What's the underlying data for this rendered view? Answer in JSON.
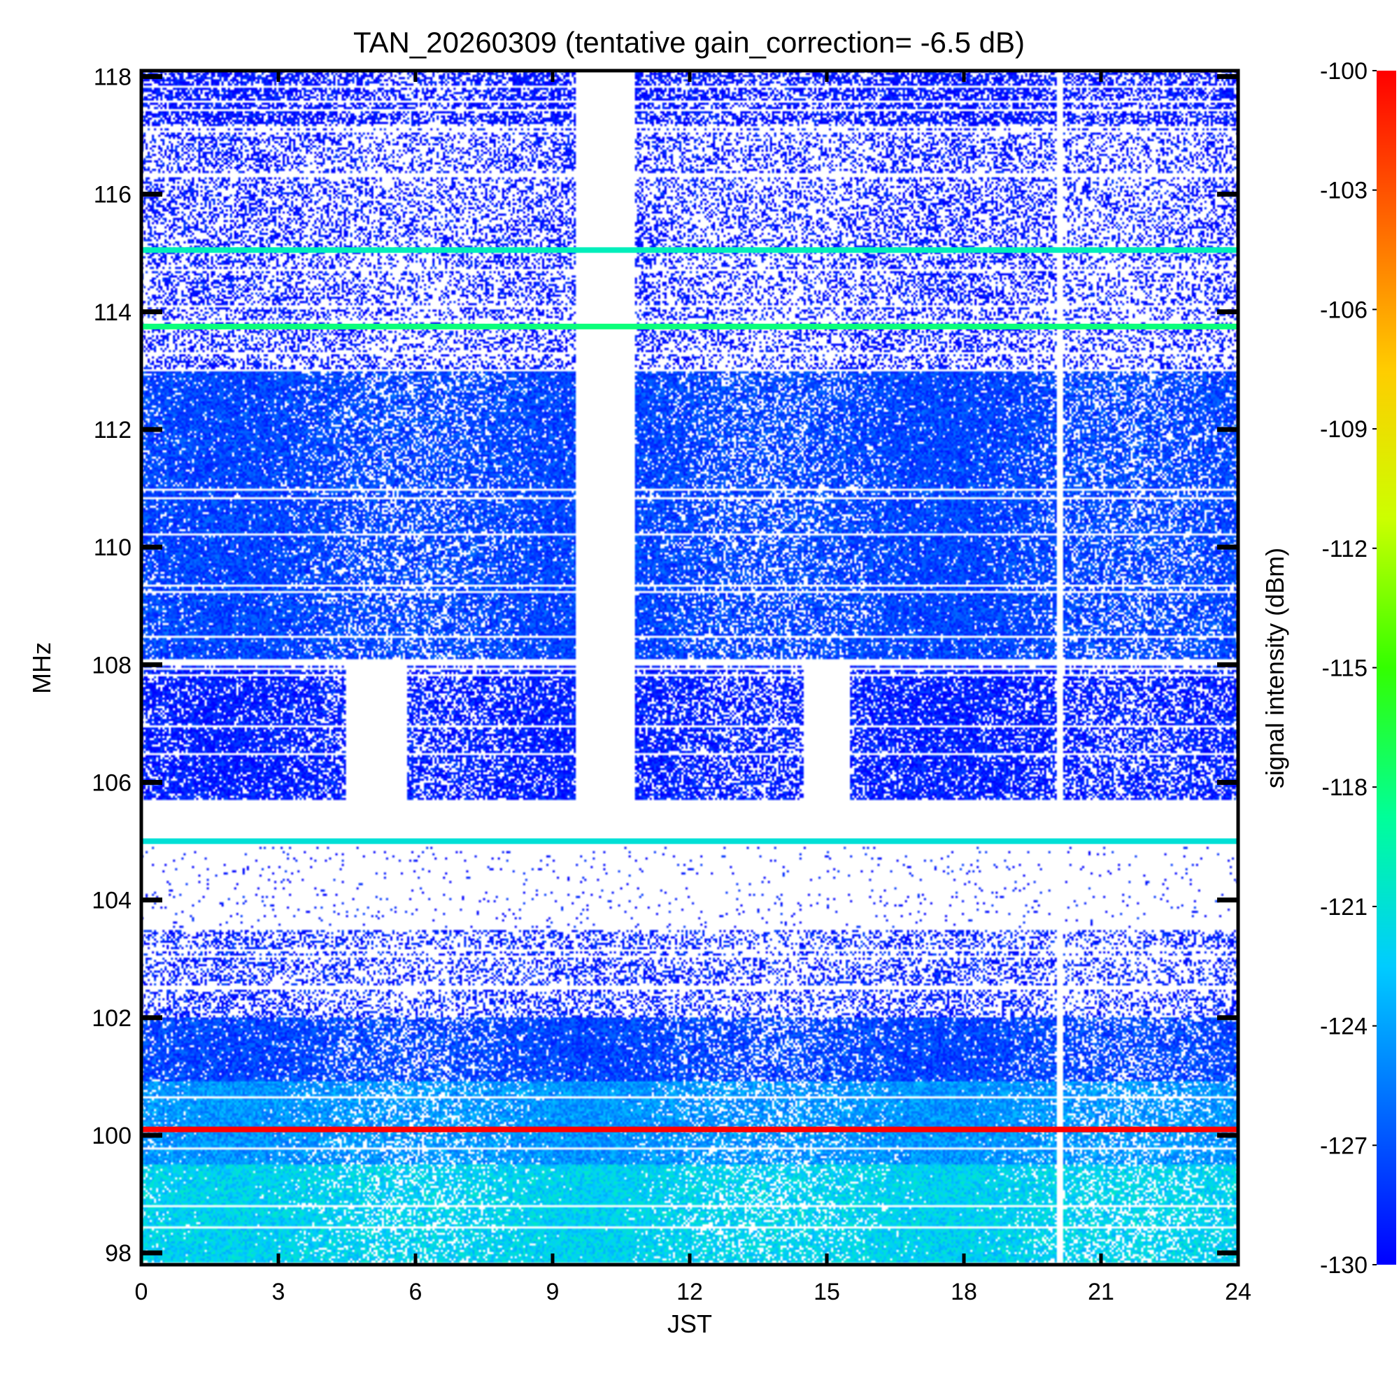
{
  "chart_data": {
    "type": "heatmap",
    "title": "TAN_20260309 (tentative gain_correction= -6.5 dB)",
    "xlabel": "JST",
    "ylabel": "MHz",
    "colorbar_label": "signal intensity (dBm)",
    "xlim": [
      0,
      24
    ],
    "ylim": [
      97.8,
      118.1
    ],
    "x_ticks": [
      0,
      3,
      6,
      9,
      12,
      15,
      18,
      21,
      24
    ],
    "x_tick_labels": [
      "0",
      "3",
      "6",
      "9",
      "12",
      "15",
      "18",
      "21",
      "24"
    ],
    "y_ticks": [
      98,
      100,
      102,
      104,
      106,
      108,
      110,
      112,
      114,
      116,
      118
    ],
    "y_tick_labels": [
      "98",
      "100",
      "102",
      "104",
      "106",
      "108",
      "110",
      "112",
      "114",
      "116",
      "118"
    ],
    "colorbar_range": [
      -130,
      -100
    ],
    "colorbar_ticks": [
      -100,
      -103,
      -106,
      -109,
      -112,
      -115,
      -118,
      -121,
      -124,
      -127,
      -130
    ],
    "colorbar_tick_labels": [
      "-100",
      "-103",
      "-106",
      "-109",
      "-112",
      "-115",
      "-118",
      "-121",
      "-124",
      "-127",
      "-130"
    ],
    "colormap": [
      "#0000ff",
      "#0066ff",
      "#00ccff",
      "#00ff99",
      "#33ff00",
      "#ccff00",
      "#ffcc00",
      "#ff6600",
      "#ff0000"
    ],
    "bands": [
      {
        "f_low": 97.8,
        "f_high": 99.5,
        "level_dbm": -122,
        "density": 1.0
      },
      {
        "f_low": 99.5,
        "f_high": 100.9,
        "level_dbm": -124.5,
        "density": 1.0
      },
      {
        "f_low": 100.9,
        "f_high": 102.0,
        "level_dbm": -127.5,
        "density": 0.95
      },
      {
        "f_low": 102.0,
        "f_high": 103.5,
        "level_dbm": -129,
        "density": 0.45
      },
      {
        "f_low": 103.5,
        "f_high": 104.9,
        "level_dbm": -129.5,
        "density": 0.04
      },
      {
        "f_low": 105.7,
        "f_high": 108.0,
        "level_dbm": -129,
        "density": 0.85
      },
      {
        "f_low": 108.1,
        "f_high": 113.0,
        "level_dbm": -127.5,
        "density": 0.95
      },
      {
        "f_low": 113.0,
        "f_high": 117.2,
        "level_dbm": -129.5,
        "density": 0.45
      },
      {
        "f_low": 117.2,
        "f_high": 118.1,
        "level_dbm": -129.5,
        "density": 0.75
      }
    ],
    "persistent_lines": [
      {
        "freq": 100.1,
        "level_dbm": -100
      },
      {
        "freq": 105.0,
        "level_dbm": -121
      },
      {
        "freq": 113.75,
        "level_dbm": -118
      },
      {
        "freq": 115.05,
        "level_dbm": -120
      }
    ],
    "gaps": [
      {
        "t_start": 9.5,
        "t_end": 10.8,
        "f_low": 105.5,
        "f_high": 118.1
      },
      {
        "t_start": 4.5,
        "t_end": 5.8,
        "f_low": 105.5,
        "f_high": 108.0
      },
      {
        "t_start": 14.5,
        "t_end": 15.5,
        "f_low": 105.5,
        "f_high": 108.0
      },
      {
        "t_start": 20.05,
        "t_end": 20.15,
        "f_low": 97.8,
        "f_high": 118.1
      }
    ]
  }
}
